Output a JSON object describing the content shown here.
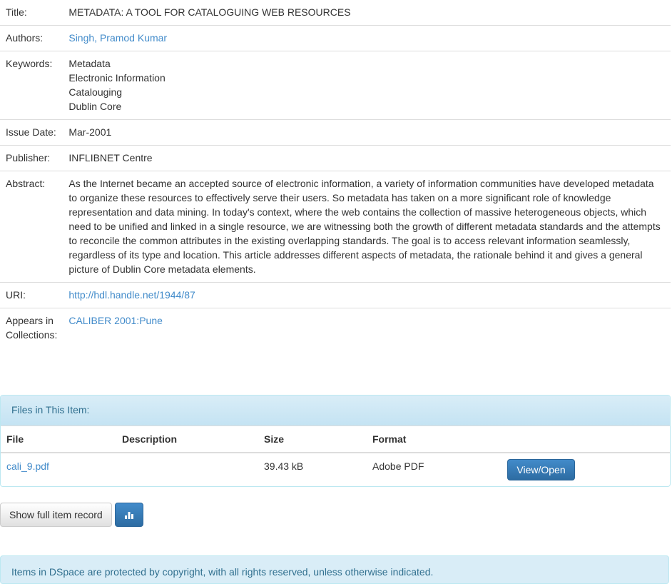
{
  "metadata": [
    {
      "label": "Title:",
      "values": [
        "METADATA: A TOOL FOR CATALOGUING WEB RESOURCES"
      ]
    },
    {
      "label": "Authors:",
      "values": [
        "Singh, Pramod Kumar"
      ],
      "link": true
    },
    {
      "label": "Keywords:",
      "values": [
        "Metadata",
        "Electronic Information",
        "Catalouging",
        "Dublin Core"
      ]
    },
    {
      "label": "Issue Date:",
      "values": [
        "Mar-2001"
      ]
    },
    {
      "label": "Publisher:",
      "values": [
        "INFLIBNET Centre"
      ]
    },
    {
      "label": "Abstract:",
      "values": [
        "As the Internet became an accepted source of electronic information, a variety of information communities have developed metadata to organize these resources to effectively serve their users. So metadata has taken on a more significant role of knowledge representation and data mining. In today's context, where the web contains the collection of massive heterogeneous objects, which need to be unified and linked in a single resource, we are witnessing both the growth of different metadata standards and the attempts to reconcile the common attributes in the existing overlapping standards. The goal is to access relevant information seamlessly, regardless of its type and location. This article addresses different aspects of metadata, the rationale behind it and gives a general picture of Dublin Core metadata elements."
      ]
    },
    {
      "label": "URI:",
      "values": [
        "http://hdl.handle.net/1944/87"
      ],
      "link": true
    },
    {
      "label": "Appears in Collections:",
      "values": [
        "CALIBER 2001:Pune"
      ],
      "link": true
    }
  ],
  "files": {
    "heading": "Files in This Item:",
    "columns": [
      "File",
      "Description",
      "Size",
      "Format"
    ],
    "rows": [
      {
        "file": "cali_9.pdf",
        "description": "",
        "size": "39.43 kB",
        "format": "Adobe PDF",
        "action": "View/Open"
      }
    ]
  },
  "show_full_label": "Show full item record",
  "stats_icon": "bar-chart-icon",
  "footer_text": "Items in DSpace are protected by copyright, with all rights reserved, unless otherwise indicated."
}
